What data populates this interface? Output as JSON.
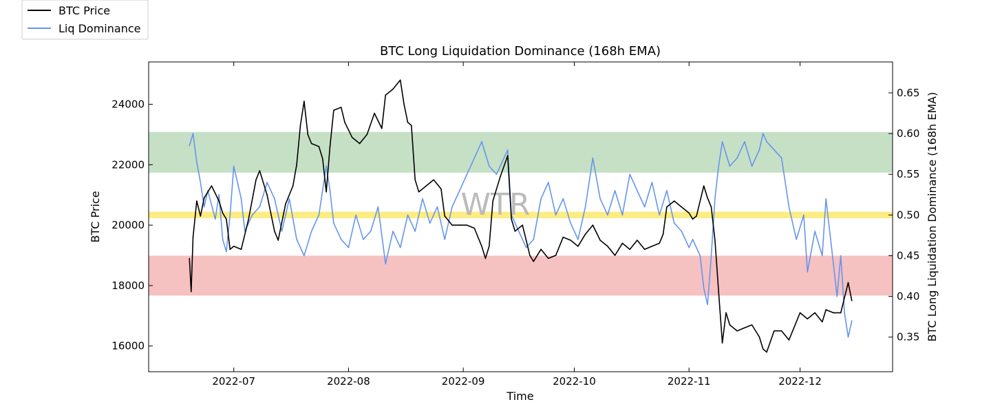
{
  "chart_data": {
    "type": "line",
    "title": "BTC Long Liquidation Dominance (168h EMA)",
    "xlabel": "Time",
    "ylabel_left": "BTC Price",
    "ylabel_right": "BTC Long Liquidation Dominance (168h EMA)",
    "watermark": "WTR",
    "x_range": [
      "2022-06-08",
      "2022-12-26"
    ],
    "ylim_left": [
      15150,
      25400
    ],
    "ylim_right": [
      0.3075,
      0.688
    ],
    "x_ticks": [
      "2022-07",
      "2022-08",
      "2022-09",
      "2022-10",
      "2022-11",
      "2022-12"
    ],
    "y_ticks_left": [
      16000,
      18000,
      20000,
      22000,
      24000
    ],
    "y_ticks_right": [
      0.35,
      0.4,
      0.45,
      0.5,
      0.55,
      0.6,
      0.65
    ],
    "legend_placement": "upper-left-outside",
    "grid": false,
    "bands": [
      {
        "axis": "right",
        "from": 0.552,
        "to": 0.602,
        "color": "#c6e0c6",
        "label": "green band"
      },
      {
        "axis": "right",
        "from": 0.496,
        "to": 0.504,
        "color": "#fcec83",
        "label": "yellow band"
      },
      {
        "axis": "right",
        "from": 0.401,
        "to": 0.45,
        "color": "#f6c1c1",
        "label": "red band"
      }
    ],
    "series": [
      {
        "name": "BTC Price",
        "axis": "left",
        "color": "#000000",
        "points": [
          [
            "2022-06-19",
            18900
          ],
          [
            "2022-06-19T12",
            17800
          ],
          [
            "2022-06-20",
            19600
          ],
          [
            "2022-06-21",
            20800
          ],
          [
            "2022-06-22",
            20300
          ],
          [
            "2022-06-23",
            20900
          ],
          [
            "2022-06-25",
            21300
          ],
          [
            "2022-06-27",
            20800
          ],
          [
            "2022-06-28",
            20400
          ],
          [
            "2022-06-29",
            20200
          ],
          [
            "2022-06-30",
            19200
          ],
          [
            "2022-07-01",
            19300
          ],
          [
            "2022-07-03",
            19200
          ],
          [
            "2022-07-05",
            20200
          ],
          [
            "2022-07-07",
            21500
          ],
          [
            "2022-07-08",
            21800
          ],
          [
            "2022-07-10",
            21000
          ],
          [
            "2022-07-12",
            19800
          ],
          [
            "2022-07-13",
            19500
          ],
          [
            "2022-07-15",
            20700
          ],
          [
            "2022-07-17",
            21300
          ],
          [
            "2022-07-18",
            22000
          ],
          [
            "2022-07-19",
            23300
          ],
          [
            "2022-07-20",
            24100
          ],
          [
            "2022-07-21",
            23000
          ],
          [
            "2022-07-22",
            22700
          ],
          [
            "2022-07-24",
            22600
          ],
          [
            "2022-07-25",
            22200
          ],
          [
            "2022-07-26",
            21100
          ],
          [
            "2022-07-27",
            22600
          ],
          [
            "2022-07-28",
            23800
          ],
          [
            "2022-07-30",
            23900
          ],
          [
            "2022-07-31",
            23400
          ],
          [
            "2022-08-02",
            22900
          ],
          [
            "2022-08-04",
            22700
          ],
          [
            "2022-08-06",
            23000
          ],
          [
            "2022-08-08",
            23700
          ],
          [
            "2022-08-10",
            23200
          ],
          [
            "2022-08-11",
            24300
          ],
          [
            "2022-08-13",
            24500
          ],
          [
            "2022-08-15",
            24800
          ],
          [
            "2022-08-16",
            24000
          ],
          [
            "2022-08-17",
            23400
          ],
          [
            "2022-08-18",
            23300
          ],
          [
            "2022-08-19",
            21500
          ],
          [
            "2022-08-20",
            21100
          ],
          [
            "2022-08-22",
            21300
          ],
          [
            "2022-08-24",
            21500
          ],
          [
            "2022-08-26",
            21200
          ],
          [
            "2022-08-27",
            20300
          ],
          [
            "2022-08-29",
            20000
          ],
          [
            "2022-08-31",
            20000
          ],
          [
            "2022-09-02",
            20000
          ],
          [
            "2022-09-04",
            19900
          ],
          [
            "2022-09-06",
            19300
          ],
          [
            "2022-09-07",
            18900
          ],
          [
            "2022-09-08",
            19300
          ],
          [
            "2022-09-09",
            20800
          ],
          [
            "2022-09-11",
            21600
          ],
          [
            "2022-09-13",
            22300
          ],
          [
            "2022-09-14",
            20200
          ],
          [
            "2022-09-15",
            19800
          ],
          [
            "2022-09-17",
            20000
          ],
          [
            "2022-09-18",
            19500
          ],
          [
            "2022-09-19",
            19000
          ],
          [
            "2022-09-20",
            18800
          ],
          [
            "2022-09-22",
            19200
          ],
          [
            "2022-09-24",
            18900
          ],
          [
            "2022-09-26",
            19000
          ],
          [
            "2022-09-28",
            19600
          ],
          [
            "2022-09-30",
            19500
          ],
          [
            "2022-10-02",
            19300
          ],
          [
            "2022-10-04",
            19700
          ],
          [
            "2022-10-06",
            20000
          ],
          [
            "2022-10-08",
            19500
          ],
          [
            "2022-10-10",
            19300
          ],
          [
            "2022-10-12",
            19000
          ],
          [
            "2022-10-14",
            19400
          ],
          [
            "2022-10-16",
            19200
          ],
          [
            "2022-10-18",
            19500
          ],
          [
            "2022-10-20",
            19200
          ],
          [
            "2022-10-22",
            19300
          ],
          [
            "2022-10-24",
            19400
          ],
          [
            "2022-10-25",
            19700
          ],
          [
            "2022-10-26",
            20600
          ],
          [
            "2022-10-28",
            20800
          ],
          [
            "2022-10-30",
            20600
          ],
          [
            "2022-11-01",
            20400
          ],
          [
            "2022-11-02",
            20200
          ],
          [
            "2022-11-03",
            20300
          ],
          [
            "2022-11-05",
            21300
          ],
          [
            "2022-11-06",
            20900
          ],
          [
            "2022-11-07",
            20600
          ],
          [
            "2022-11-08",
            19500
          ],
          [
            "2022-11-09",
            17800
          ],
          [
            "2022-11-10",
            16100
          ],
          [
            "2022-11-11",
            17100
          ],
          [
            "2022-11-12",
            16700
          ],
          [
            "2022-11-14",
            16500
          ],
          [
            "2022-11-16",
            16600
          ],
          [
            "2022-11-18",
            16700
          ],
          [
            "2022-11-20",
            16300
          ],
          [
            "2022-11-21",
            15900
          ],
          [
            "2022-11-22",
            15800
          ],
          [
            "2022-11-24",
            16500
          ],
          [
            "2022-11-26",
            16500
          ],
          [
            "2022-11-28",
            16200
          ],
          [
            "2022-11-30",
            16800
          ],
          [
            "2022-12-01",
            17100
          ],
          [
            "2022-12-03",
            16900
          ],
          [
            "2022-12-05",
            17100
          ],
          [
            "2022-12-07",
            16800
          ],
          [
            "2022-12-08",
            17200
          ],
          [
            "2022-12-10",
            17100
          ],
          [
            "2022-12-12",
            17100
          ],
          [
            "2022-12-13",
            17600
          ],
          [
            "2022-12-14",
            18100
          ],
          [
            "2022-12-15",
            17500
          ]
        ]
      },
      {
        "name": "Liq Dominance",
        "axis": "right",
        "color": "#6495ed",
        "points": [
          [
            "2022-06-19",
            0.585
          ],
          [
            "2022-06-20",
            0.6
          ],
          [
            "2022-06-21",
            0.565
          ],
          [
            "2022-06-22",
            0.54
          ],
          [
            "2022-06-23",
            0.51
          ],
          [
            "2022-06-24",
            0.53
          ],
          [
            "2022-06-26",
            0.495
          ],
          [
            "2022-06-27",
            0.525
          ],
          [
            "2022-06-28",
            0.47
          ],
          [
            "2022-06-29",
            0.455
          ],
          [
            "2022-06-30",
            0.5
          ],
          [
            "2022-07-01",
            0.56
          ],
          [
            "2022-07-03",
            0.52
          ],
          [
            "2022-07-04",
            0.48
          ],
          [
            "2022-07-06",
            0.5
          ],
          [
            "2022-07-08",
            0.51
          ],
          [
            "2022-07-10",
            0.54
          ],
          [
            "2022-07-12",
            0.52
          ],
          [
            "2022-07-14",
            0.48
          ],
          [
            "2022-07-16",
            0.52
          ],
          [
            "2022-07-18",
            0.47
          ],
          [
            "2022-07-20",
            0.45
          ],
          [
            "2022-07-22",
            0.48
          ],
          [
            "2022-07-24",
            0.5
          ],
          [
            "2022-07-26",
            0.56
          ],
          [
            "2022-07-27",
            0.53
          ],
          [
            "2022-07-28",
            0.49
          ],
          [
            "2022-07-30",
            0.47
          ],
          [
            "2022-08-01",
            0.46
          ],
          [
            "2022-08-03",
            0.5
          ],
          [
            "2022-08-05",
            0.47
          ],
          [
            "2022-08-07",
            0.48
          ],
          [
            "2022-08-09",
            0.51
          ],
          [
            "2022-08-11",
            0.44
          ],
          [
            "2022-08-13",
            0.48
          ],
          [
            "2022-08-15",
            0.46
          ],
          [
            "2022-08-17",
            0.5
          ],
          [
            "2022-08-19",
            0.48
          ],
          [
            "2022-08-21",
            0.52
          ],
          [
            "2022-08-23",
            0.49
          ],
          [
            "2022-08-25",
            0.51
          ],
          [
            "2022-08-27",
            0.47
          ],
          [
            "2022-08-29",
            0.51
          ],
          [
            "2022-08-31",
            0.53
          ],
          [
            "2022-09-02",
            0.55
          ],
          [
            "2022-09-04",
            0.57
          ],
          [
            "2022-09-06",
            0.59
          ],
          [
            "2022-09-08",
            0.56
          ],
          [
            "2022-09-10",
            0.55
          ],
          [
            "2022-09-12",
            0.57
          ],
          [
            "2022-09-13",
            0.58
          ],
          [
            "2022-09-14",
            0.5
          ],
          [
            "2022-09-16",
            0.48
          ],
          [
            "2022-09-18",
            0.46
          ],
          [
            "2022-09-20",
            0.47
          ],
          [
            "2022-09-22",
            0.52
          ],
          [
            "2022-09-24",
            0.54
          ],
          [
            "2022-09-26",
            0.5
          ],
          [
            "2022-09-28",
            0.52
          ],
          [
            "2022-09-30",
            0.49
          ],
          [
            "2022-10-02",
            0.47
          ],
          [
            "2022-10-04",
            0.51
          ],
          [
            "2022-10-06",
            0.57
          ],
          [
            "2022-10-08",
            0.52
          ],
          [
            "2022-10-10",
            0.5
          ],
          [
            "2022-10-12",
            0.53
          ],
          [
            "2022-10-14",
            0.5
          ],
          [
            "2022-10-16",
            0.55
          ],
          [
            "2022-10-18",
            0.53
          ],
          [
            "2022-10-20",
            0.51
          ],
          [
            "2022-10-22",
            0.54
          ],
          [
            "2022-10-24",
            0.5
          ],
          [
            "2022-10-26",
            0.53
          ],
          [
            "2022-10-28",
            0.49
          ],
          [
            "2022-10-30",
            0.48
          ],
          [
            "2022-11-01",
            0.46
          ],
          [
            "2022-11-02",
            0.47
          ],
          [
            "2022-11-04",
            0.45
          ],
          [
            "2022-11-05",
            0.41
          ],
          [
            "2022-11-06",
            0.39
          ],
          [
            "2022-11-07",
            0.45
          ],
          [
            "2022-11-08",
            0.52
          ],
          [
            "2022-11-09",
            0.56
          ],
          [
            "2022-11-10",
            0.59
          ],
          [
            "2022-11-12",
            0.56
          ],
          [
            "2022-11-14",
            0.57
          ],
          [
            "2022-11-16",
            0.59
          ],
          [
            "2022-11-18",
            0.56
          ],
          [
            "2022-11-20",
            0.58
          ],
          [
            "2022-11-21",
            0.6
          ],
          [
            "2022-11-22",
            0.59
          ],
          [
            "2022-11-24",
            0.58
          ],
          [
            "2022-11-26",
            0.57
          ],
          [
            "2022-11-28",
            0.51
          ],
          [
            "2022-11-30",
            0.47
          ],
          [
            "2022-12-02",
            0.5
          ],
          [
            "2022-12-03",
            0.43
          ],
          [
            "2022-12-05",
            0.48
          ],
          [
            "2022-12-07",
            0.45
          ],
          [
            "2022-12-08",
            0.52
          ],
          [
            "2022-12-10",
            0.44
          ],
          [
            "2022-12-11",
            0.4
          ],
          [
            "2022-12-12",
            0.45
          ],
          [
            "2022-12-13",
            0.38
          ],
          [
            "2022-12-14",
            0.35
          ],
          [
            "2022-12-15",
            0.37
          ]
        ]
      }
    ]
  }
}
